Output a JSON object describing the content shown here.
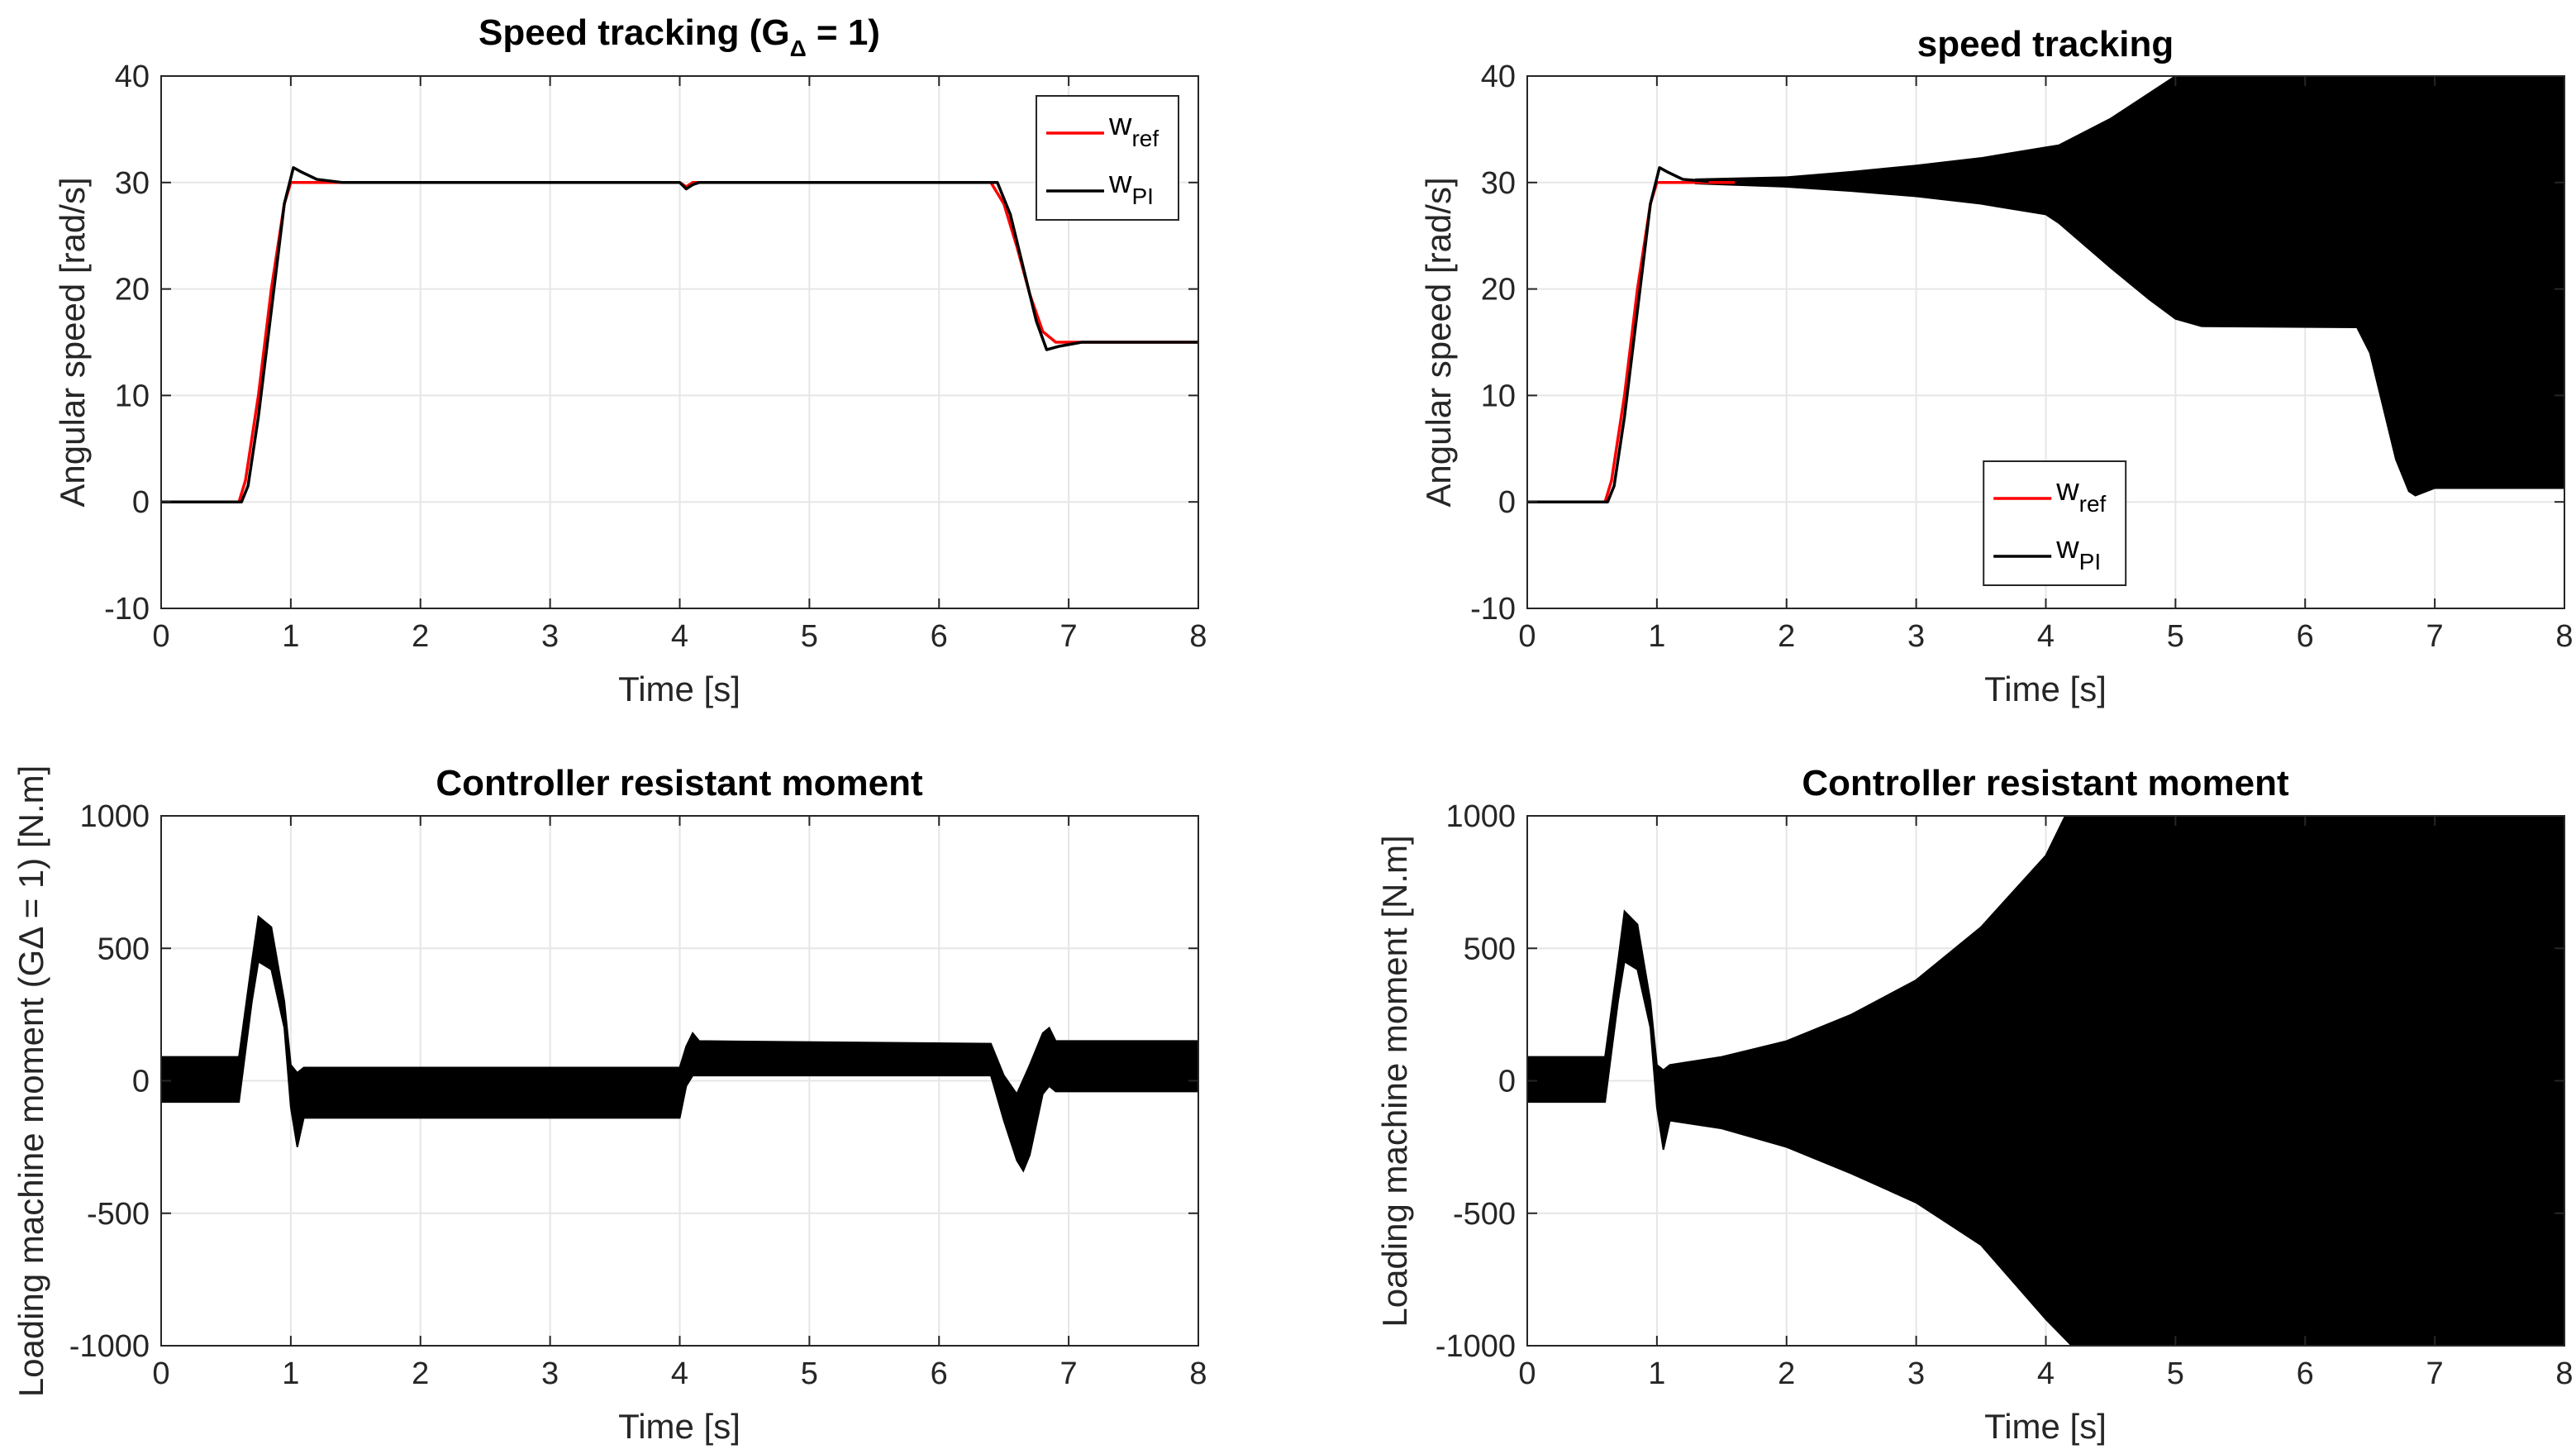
{
  "chart_data": [
    {
      "id": "p0",
      "type": "line",
      "title": "Speed tracking (G",
      "title_sub": "Δ",
      "title_end": " = 1)",
      "xlabel": "Time [s]",
      "ylabel": "Angular speed [rad/s]",
      "xlim": [
        0,
        8
      ],
      "ylim": [
        -10,
        40
      ],
      "xticks": [
        "0",
        "1",
        "2",
        "3",
        "4",
        "5",
        "6",
        "7",
        "8"
      ],
      "yticks": [
        "-10",
        "0",
        "10",
        "20",
        "30",
        "40"
      ],
      "grid": true,
      "legend": {
        "position": "top-right",
        "entries": [
          {
            "base": "w",
            "sub": "ref",
            "color": "#ff0000"
          },
          {
            "base": "w",
            "sub": "PI",
            "color": "#000000"
          }
        ]
      },
      "series": [
        {
          "name": "w_ref",
          "color": "#ff0000",
          "points": [
            [
              0,
              0
            ],
            [
              0.6,
              0
            ],
            [
              0.65,
              2
            ],
            [
              0.75,
              10
            ],
            [
              0.85,
              20
            ],
            [
              0.95,
              28
            ],
            [
              1.0,
              30
            ],
            [
              4.0,
              30
            ],
            [
              4.05,
              29.6
            ],
            [
              4.1,
              30
            ],
            [
              6.4,
              30
            ],
            [
              6.5,
              28
            ],
            [
              6.6,
              24
            ],
            [
              6.7,
              19.5
            ],
            [
              6.8,
              16
            ],
            [
              6.9,
              15
            ],
            [
              8.0,
              15
            ]
          ]
        },
        {
          "name": "w_PI",
          "color": "#000000",
          "points": [
            [
              0,
              0
            ],
            [
              0.62,
              0
            ],
            [
              0.67,
              1.5
            ],
            [
              0.75,
              8
            ],
            [
              0.85,
              18
            ],
            [
              0.95,
              28
            ],
            [
              1.02,
              31.4
            ],
            [
              1.08,
              31
            ],
            [
              1.2,
              30.3
            ],
            [
              1.4,
              30
            ],
            [
              4.0,
              30
            ],
            [
              4.05,
              29.4
            ],
            [
              4.1,
              29.8
            ],
            [
              4.15,
              30
            ],
            [
              6.45,
              30
            ],
            [
              6.55,
              27
            ],
            [
              6.65,
              22
            ],
            [
              6.75,
              17
            ],
            [
              6.83,
              14.3
            ],
            [
              6.92,
              14.6
            ],
            [
              7.1,
              15
            ],
            [
              8.0,
              15
            ]
          ]
        }
      ]
    },
    {
      "id": "p1",
      "type": "line",
      "title": "speed tracking",
      "xlabel": "Time [s]",
      "ylabel": "Angular speed [rad/s]",
      "xlim": [
        0,
        8
      ],
      "ylim": [
        -10,
        40
      ],
      "xticks": [
        "0",
        "1",
        "2",
        "3",
        "4",
        "5",
        "6",
        "7",
        "8"
      ],
      "yticks": [
        "-10",
        "0",
        "10",
        "20",
        "30",
        "40"
      ],
      "grid": true,
      "legend": {
        "position": "bottom-center",
        "entries": [
          {
            "base": "w",
            "sub": "ref",
            "color": "#ff0000"
          },
          {
            "base": "w",
            "sub": "PI",
            "color": "#000000"
          }
        ]
      },
      "series": [
        {
          "name": "w_ref",
          "color": "#ff0000",
          "points": [
            [
              0,
              0
            ],
            [
              0.6,
              0
            ],
            [
              0.65,
              2
            ],
            [
              0.75,
              10
            ],
            [
              0.85,
              20
            ],
            [
              0.95,
              28
            ],
            [
              1.0,
              30
            ],
            [
              1.6,
              30
            ]
          ]
        },
        {
          "name": "w_PI",
          "color": "#000000",
          "points": [
            [
              0,
              0
            ],
            [
              0.62,
              0
            ],
            [
              0.67,
              1.5
            ],
            [
              0.75,
              8
            ],
            [
              0.85,
              18
            ],
            [
              0.95,
              28
            ],
            [
              1.02,
              31.4
            ],
            [
              1.08,
              31
            ],
            [
              1.2,
              30.3
            ],
            [
              1.4,
              30.1
            ]
          ]
        }
      ],
      "bands": [
        {
          "name": "w_PI oscillation envelope",
          "color": "#000000",
          "upper": [
            [
              1.3,
              30.3
            ],
            [
              2,
              30.5
            ],
            [
              2.5,
              31
            ],
            [
              3,
              31.6
            ],
            [
              3.5,
              32.3
            ],
            [
              4,
              33.3
            ],
            [
              4.1,
              33.5
            ],
            [
              4.5,
              36
            ],
            [
              5,
              40
            ],
            [
              8,
              40
            ]
          ],
          "lower": [
            [
              1.3,
              29.9
            ],
            [
              2,
              29.6
            ],
            [
              2.5,
              29.2
            ],
            [
              3,
              28.7
            ],
            [
              3.5,
              28
            ],
            [
              4,
              27
            ],
            [
              4.1,
              26.2
            ],
            [
              4.5,
              22
            ],
            [
              4.8,
              19
            ],
            [
              5,
              17.2
            ],
            [
              5.2,
              16.5
            ],
            [
              6.4,
              16.4
            ],
            [
              6.5,
              14
            ],
            [
              6.6,
              9
            ],
            [
              6.7,
              4
            ],
            [
              6.8,
              1
            ],
            [
              6.85,
              0.6
            ],
            [
              7,
              1.3
            ],
            [
              8,
              1.3
            ]
          ]
        },
        {
          "name": "w_PI upper after transition",
          "color": "#000000",
          "upper": [
            [
              6.4,
              40
            ],
            [
              8,
              40
            ]
          ],
          "lower": [
            [
              6.4,
              40
            ],
            [
              6.5,
              36
            ],
            [
              6.6,
              32
            ],
            [
              6.7,
              29
            ],
            [
              6.8,
              27.5
            ],
            [
              6.9,
              28
            ],
            [
              7,
              28.3
            ],
            [
              8,
              28.3
            ]
          ]
        }
      ]
    },
    {
      "id": "p2",
      "type": "line",
      "title": "Controller resistant moment",
      "xlabel": "Time [s]",
      "ylabel": "Loading machine moment  (GΔ = 1) [N.m]",
      "xlim": [
        0,
        8
      ],
      "ylim": [
        -1000,
        1000
      ],
      "xticks": [
        "0",
        "1",
        "2",
        "3",
        "4",
        "5",
        "6",
        "7",
        "8"
      ],
      "yticks": [
        "-1000",
        "-500",
        "0",
        "500",
        "1000"
      ],
      "grid": true,
      "series": [],
      "bands": [
        {
          "name": "moment (noisy)",
          "color": "#000000",
          "upper": [
            [
              0,
              90
            ],
            [
              0.6,
              90
            ],
            [
              0.7,
              450
            ],
            [
              0.75,
              620
            ],
            [
              0.85,
              580
            ],
            [
              0.95,
              300
            ],
            [
              1.0,
              60
            ],
            [
              1.05,
              30
            ],
            [
              1.1,
              50
            ],
            [
              4.0,
              50
            ],
            [
              4.05,
              130
            ],
            [
              4.1,
              180
            ],
            [
              4.15,
              150
            ],
            [
              6.4,
              140
            ],
            [
              6.5,
              20
            ],
            [
              6.6,
              -50
            ],
            [
              6.7,
              60
            ],
            [
              6.8,
              180
            ],
            [
              6.85,
              200
            ],
            [
              6.9,
              150
            ],
            [
              8,
              150
            ]
          ],
          "lower": [
            [
              0,
              -80
            ],
            [
              0.6,
              -80
            ],
            [
              0.7,
              300
            ],
            [
              0.75,
              450
            ],
            [
              0.85,
              420
            ],
            [
              0.95,
              200
            ],
            [
              1.0,
              -100
            ],
            [
              1.05,
              -250
            ],
            [
              1.1,
              -140
            ],
            [
              4.0,
              -140
            ],
            [
              4.05,
              -20
            ],
            [
              4.1,
              20
            ],
            [
              6.4,
              20
            ],
            [
              6.5,
              -150
            ],
            [
              6.6,
              -300
            ],
            [
              6.65,
              -340
            ],
            [
              6.7,
              -280
            ],
            [
              6.8,
              -50
            ],
            [
              6.85,
              -20
            ],
            [
              6.9,
              -40
            ],
            [
              8,
              -40
            ]
          ]
        }
      ]
    },
    {
      "id": "p3",
      "type": "line",
      "title": "Controller resistant moment",
      "xlabel": "Time [s]",
      "ylabel": "Loading machine moment [N.m]",
      "xlim": [
        0,
        8
      ],
      "ylim": [
        -1000,
        1000
      ],
      "xticks": [
        "0",
        "1",
        "2",
        "3",
        "4",
        "5",
        "6",
        "7",
        "8"
      ],
      "yticks": [
        "-1000",
        "-500",
        "0",
        "500",
        "1000"
      ],
      "grid": true,
      "series": [],
      "bands": [
        {
          "name": "moment (growing oscillation)",
          "color": "#000000",
          "upper": [
            [
              0,
              90
            ],
            [
              0.6,
              90
            ],
            [
              0.7,
              450
            ],
            [
              0.75,
              640
            ],
            [
              0.85,
              590
            ],
            [
              0.95,
              300
            ],
            [
              1.0,
              60
            ],
            [
              1.05,
              40
            ],
            [
              1.1,
              60
            ],
            [
              1.5,
              90
            ],
            [
              2,
              150
            ],
            [
              2.5,
              250
            ],
            [
              3,
              380
            ],
            [
              3.5,
              580
            ],
            [
              4,
              850
            ],
            [
              4.15,
              1000
            ],
            [
              8,
              1000
            ]
          ],
          "lower": [
            [
              0,
              -80
            ],
            [
              0.6,
              -80
            ],
            [
              0.7,
              300
            ],
            [
              0.75,
              450
            ],
            [
              0.85,
              420
            ],
            [
              0.95,
              200
            ],
            [
              1.0,
              -100
            ],
            [
              1.05,
              -260
            ],
            [
              1.1,
              -150
            ],
            [
              1.5,
              -180
            ],
            [
              2,
              -250
            ],
            [
              2.5,
              -350
            ],
            [
              3,
              -460
            ],
            [
              3.5,
              -620
            ],
            [
              4,
              -900
            ],
            [
              4.1,
              -950
            ],
            [
              4.2,
              -1000
            ],
            [
              8,
              -1000
            ]
          ]
        }
      ]
    }
  ]
}
